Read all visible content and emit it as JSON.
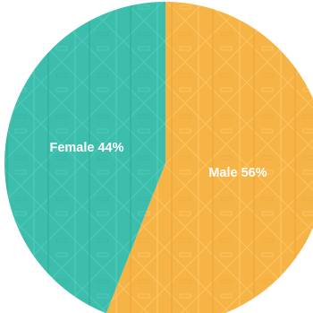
{
  "chart_data": {
    "type": "pie",
    "start_angle_deg": 0,
    "direction": "clockwise",
    "slices": [
      {
        "name": "Male",
        "value": 56,
        "color": "#F7B446",
        "label": "Male 56%"
      },
      {
        "name": "Female",
        "value": 44,
        "color": "#3DBEAC",
        "label": "Female 44%"
      }
    ],
    "title": "",
    "legend": "none"
  }
}
